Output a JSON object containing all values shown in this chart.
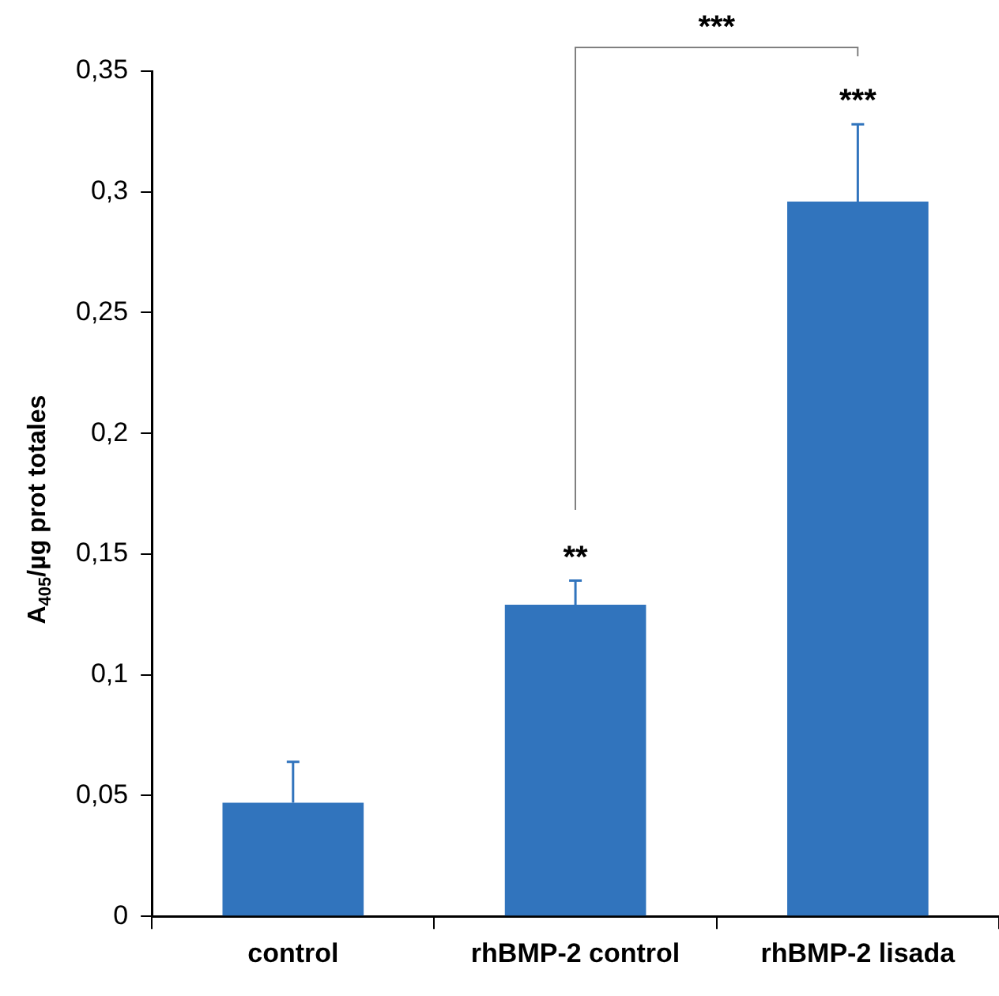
{
  "chart_data": {
    "type": "bar",
    "ylabel": "A$_{405}$/µg prot totales",
    "categories": [
      "control",
      "rhBMP-2 control",
      "rhBMP-2 lisada"
    ],
    "values": [
      0.047,
      0.129,
      0.296
    ],
    "errors": [
      [
        0.047,
        0.064
      ],
      [
        0.129,
        0.139
      ],
      [
        0.296,
        0.328
      ]
    ],
    "color": "#3174bd",
    "ylim": [
      0,
      0.35
    ],
    "yticks": [
      {
        "value": 0,
        "label": "0"
      },
      {
        "value": 0.05,
        "label": "0,05"
      },
      {
        "value": 0.1,
        "label": "0,1"
      },
      {
        "value": 0.15,
        "label": "0,15"
      },
      {
        "value": 0.2,
        "label": "0,2"
      },
      {
        "value": 0.25,
        "label": "0,25"
      },
      {
        "value": 0.3,
        "label": "0,3"
      },
      {
        "value": 0.35,
        "label": "0,35"
      }
    ],
    "grid": false,
    "legend": false,
    "annotations": [
      {
        "text": "**",
        "x": "rhBMP-2 control",
        "y": 0.139
      },
      {
        "text": "***",
        "x": "rhBMP-2 lisada",
        "y": 0.328
      },
      "***"
    ]
  }
}
